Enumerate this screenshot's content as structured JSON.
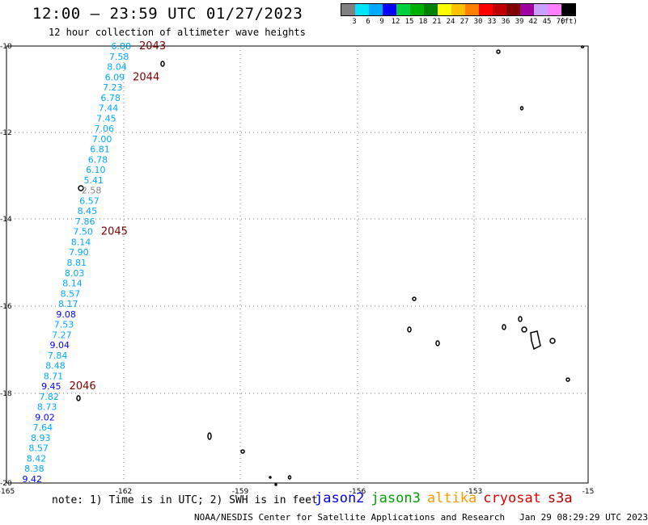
{
  "header": {
    "title": "12:00 — 23:59 UTC 01/27/2023",
    "subtitle": "12 hour collection of altimeter wave heights"
  },
  "legend": {
    "colors": [
      "#808080",
      "#00e5ff",
      "#00a8ff",
      "#0000ff",
      "#00d040",
      "#00b000",
      "#008000",
      "#ffff00",
      "#ffc000",
      "#ff8000",
      "#ff0000",
      "#c00000",
      "#800000",
      "#a000a0",
      "#c8a0ff",
      "#ff80ff",
      "#000000"
    ],
    "labels": [
      "3",
      "6",
      "9",
      "12",
      "15",
      "18",
      "21",
      "24",
      "27",
      "30",
      "33",
      "36",
      "39",
      "42",
      "45",
      "70",
      "(ft)"
    ]
  },
  "map": {
    "lon_ticks": [
      "-165",
      "-162",
      "-159",
      "-156",
      "-153",
      "-15"
    ],
    "lat_ticks": [
      "-10",
      "-12",
      "-14",
      "-16",
      "-18",
      "-20"
    ],
    "track_values": [
      {
        "v": "6.88",
        "c": "#00a8ff"
      },
      {
        "v": "7.58",
        "c": "#00a8ff"
      },
      {
        "v": "8.04",
        "c": "#00a8ff"
      },
      {
        "v": "6.09",
        "c": "#00a8ff"
      },
      {
        "v": "7.23",
        "c": "#00a8ff"
      },
      {
        "v": "6.78",
        "c": "#00a8ff"
      },
      {
        "v": "7.44",
        "c": "#00a8ff"
      },
      {
        "v": "7.45",
        "c": "#00a8ff"
      },
      {
        "v": "7.06",
        "c": "#00a8ff"
      },
      {
        "v": "7.00",
        "c": "#00a8ff"
      },
      {
        "v": "6.81",
        "c": "#00a8ff"
      },
      {
        "v": "6.78",
        "c": "#00a8ff"
      },
      {
        "v": "6.10",
        "c": "#00a8ff"
      },
      {
        "v": "5.41",
        "c": "#00a8ff"
      },
      {
        "v": "2.58",
        "c": "#808080"
      },
      {
        "v": "6.57",
        "c": "#00a8ff"
      },
      {
        "v": "8.45",
        "c": "#00a8ff"
      },
      {
        "v": "7.86",
        "c": "#00a8ff"
      },
      {
        "v": "7.50",
        "c": "#00a8ff"
      },
      {
        "v": "8.14",
        "c": "#00a8ff"
      },
      {
        "v": "7.90",
        "c": "#00a8ff"
      },
      {
        "v": "8.81",
        "c": "#00a8ff"
      },
      {
        "v": "8.03",
        "c": "#00a8ff"
      },
      {
        "v": "8.14",
        "c": "#00a8ff"
      },
      {
        "v": "8.57",
        "c": "#00a8ff"
      },
      {
        "v": "8.17",
        "c": "#00a8ff"
      },
      {
        "v": "9.08",
        "c": "#0000ff"
      },
      {
        "v": "7.53",
        "c": "#00a8ff"
      },
      {
        "v": "7.27",
        "c": "#00a8ff"
      },
      {
        "v": "9.04",
        "c": "#0000ff"
      },
      {
        "v": "7.84",
        "c": "#00a8ff"
      },
      {
        "v": "8.48",
        "c": "#00a8ff"
      },
      {
        "v": "8.71",
        "c": "#00a8ff"
      },
      {
        "v": "9.45",
        "c": "#0000ff"
      },
      {
        "v": "7.82",
        "c": "#00a8ff"
      },
      {
        "v": "8.73",
        "c": "#00a8ff"
      },
      {
        "v": "9.02",
        "c": "#0000ff"
      },
      {
        "v": "7.64",
        "c": "#00a8ff"
      },
      {
        "v": "8.93",
        "c": "#00a8ff"
      },
      {
        "v": "8.57",
        "c": "#00a8ff"
      },
      {
        "v": "8.42",
        "c": "#00a8ff"
      },
      {
        "v": "8.38",
        "c": "#00a8ff"
      },
      {
        "v": "9.42",
        "c": "#0000ff"
      }
    ],
    "time_labels": [
      {
        "t": "2043",
        "index": 0
      },
      {
        "t": "2044",
        "index": 3
      },
      {
        "t": "2045",
        "index": 18
      },
      {
        "t": "2046",
        "index": 33
      }
    ]
  },
  "footer": {
    "note": "note: 1) Time is in UTC; 2) SWH is in feet",
    "satellites": [
      {
        "name": "jason2",
        "color": "#0000e0"
      },
      {
        "name": "jason3",
        "color": "#00a000"
      },
      {
        "name": "altika",
        "color": "#ff9900"
      },
      {
        "name": "cryosat",
        "color": "#e00000"
      },
      {
        "name": "s3a",
        "color": "#b00000"
      }
    ],
    "credit": "NOAA/NESDIS Center for Satellite Applications and Research",
    "timestamp": "Jan 29 08:29:29 UTC 2023"
  }
}
